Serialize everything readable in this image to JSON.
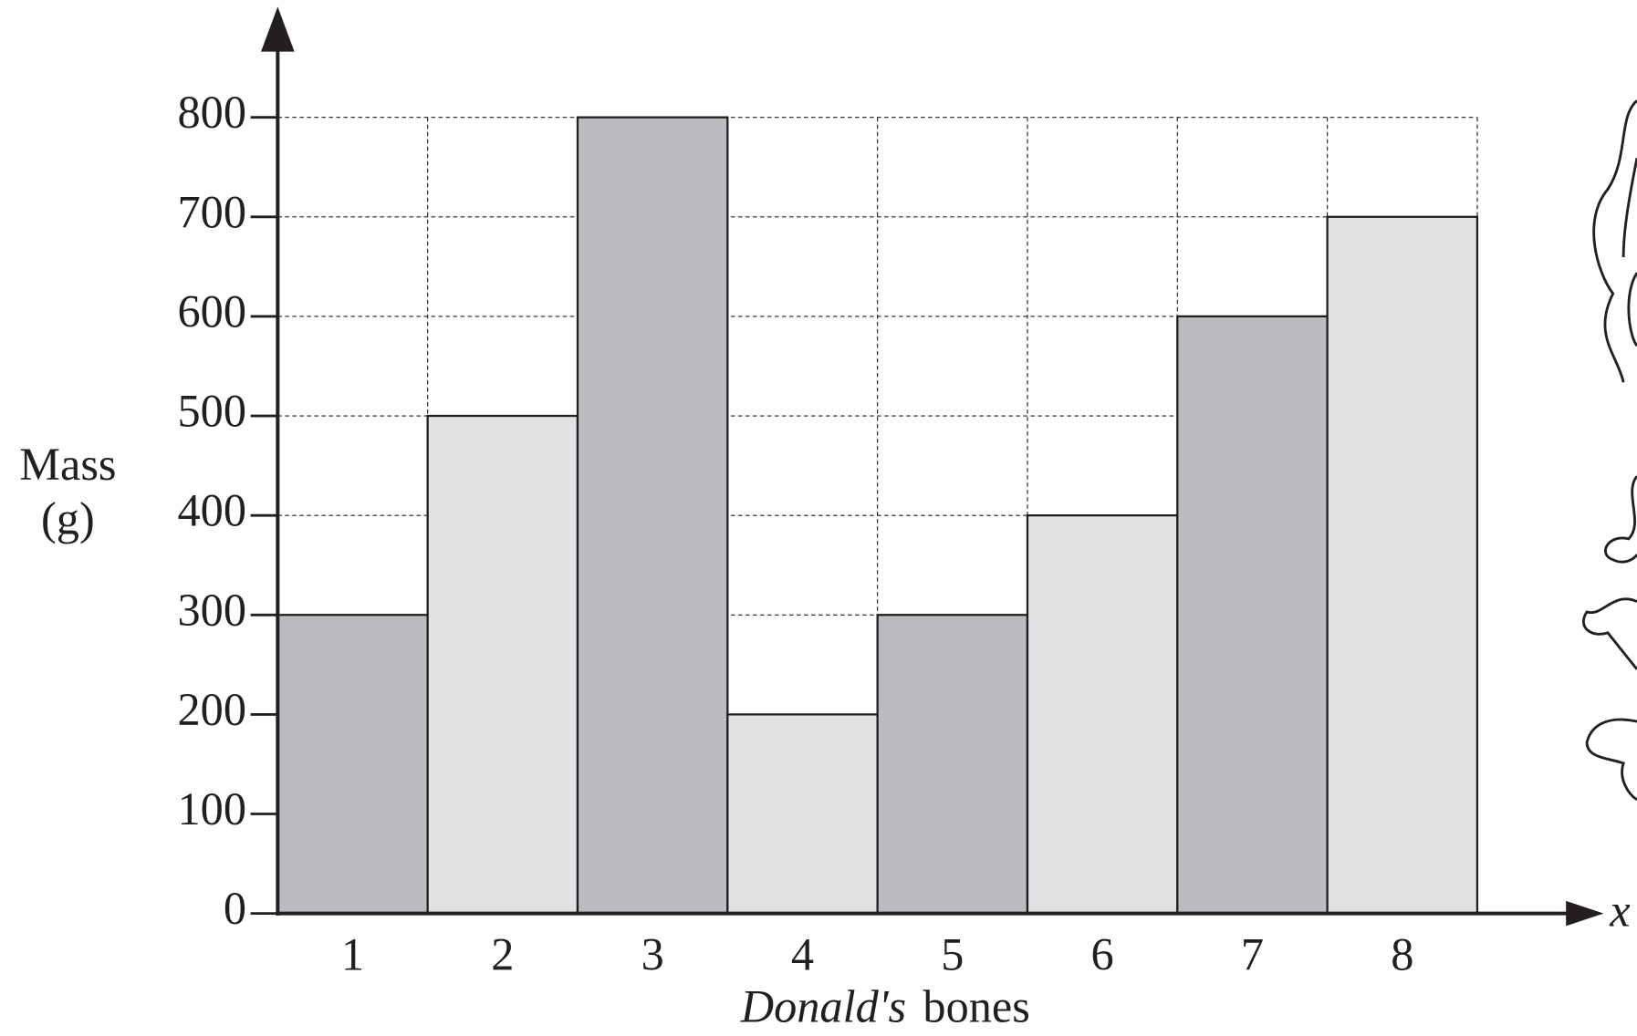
{
  "chart_data": {
    "type": "bar",
    "categories": [
      "1",
      "2",
      "3",
      "4",
      "5",
      "6",
      "7",
      "8"
    ],
    "values": [
      300,
      500,
      800,
      200,
      300,
      400,
      600,
      700
    ],
    "colors": [
      "#bbbcc0",
      "#e1e2e4",
      "#bbbcc0",
      "#e1e2e4",
      "#bbbcc0",
      "#e1e2e4",
      "#bbbcc0",
      "#e1e2e4"
    ],
    "ylim": [
      0,
      800
    ],
    "yticks": [
      0,
      100,
      200,
      300,
      400,
      500,
      600,
      700,
      800
    ],
    "grid": true,
    "y_label": [
      "Mass",
      "(g)"
    ],
    "x_label": [
      "Donald's",
      "bones"
    ],
    "x_axis_symbol": "x"
  }
}
